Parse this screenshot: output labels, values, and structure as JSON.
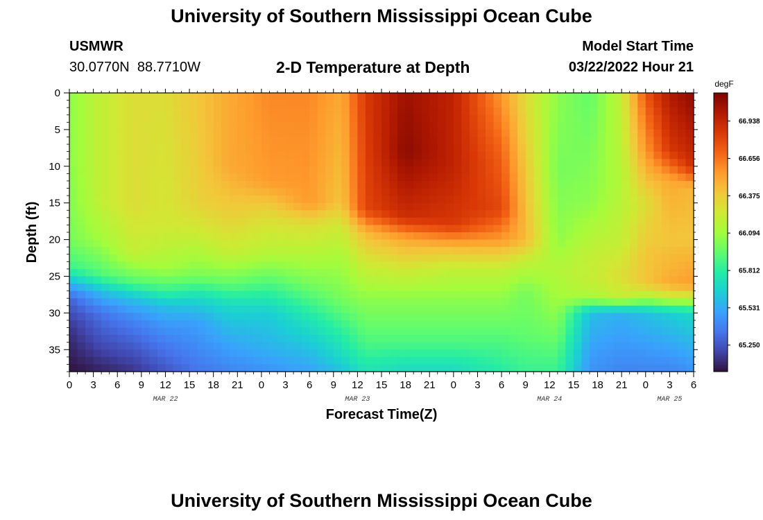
{
  "header": {
    "title": "University of Southern Mississippi Ocean Cube",
    "station_name": "USMWR",
    "station_coords": "30.0770N  88.7710W",
    "subtitle": "2-D Temperature at Depth",
    "start_label": "Model Start Time",
    "start_value": "03/22/2022 Hour 21"
  },
  "footer": {
    "title": "University of Southern Mississippi Ocean Cube"
  },
  "colors": {
    "colormap": [
      "#30123b",
      "#4145ab",
      "#4675ed",
      "#39a2fc",
      "#1bcfd4",
      "#24eca6",
      "#61fc6c",
      "#a4fc3b",
      "#d1e834",
      "#f3c63a",
      "#fe9b2d",
      "#f36315",
      "#d93806",
      "#b11901",
      "#7a0402"
    ]
  },
  "chart_data": {
    "type": "heatmap",
    "title": "2-D Temperature at Depth",
    "xlabel": "Forecast Time(Z)",
    "ylabel": "Depth (ft)",
    "colorbar_label": "degF",
    "colorbar_ticks": [
      "66.938",
      "66.656",
      "66.375",
      "66.094",
      "65.812",
      "65.531",
      "65.250"
    ],
    "colorbar_values": [
      66.938,
      66.656,
      66.375,
      66.094,
      65.812,
      65.531,
      65.25
    ],
    "value_range": [
      65.05,
      67.15
    ],
    "x_tick_labels": [
      "0",
      "3",
      "6",
      "9",
      "12",
      "15",
      "18",
      "21",
      "0",
      "3",
      "6",
      "9",
      "12",
      "15",
      "18",
      "21",
      "0",
      "3",
      "6",
      "9",
      "12",
      "15",
      "18",
      "21",
      "0",
      "3",
      "6"
    ],
    "x_range_hours": [
      0,
      78
    ],
    "date_labels": [
      {
        "text": "MAR 22",
        "hour": 12
      },
      {
        "text": "MAR 23",
        "hour": 36
      },
      {
        "text": "MAR 24",
        "hour": 60
      },
      {
        "text": "MAR 25",
        "hour": 75
      }
    ],
    "y_tick_labels": [
      "0",
      "5",
      "10",
      "15",
      "20",
      "25",
      "30",
      "35"
    ],
    "y_range": [
      0,
      38
    ],
    "x_step_hours": 1,
    "y_step_ft": 1,
    "grid": false,
    "legend": "colorbar-right",
    "keyframes": [
      {
        "h": 0,
        "p": [
          [
            0,
            66.05
          ],
          [
            10,
            66.05
          ],
          [
            20,
            66.0
          ],
          [
            24,
            65.85
          ],
          [
            26,
            65.55
          ],
          [
            28,
            65.3
          ],
          [
            32,
            65.15
          ],
          [
            38,
            65.05
          ]
        ]
      },
      {
        "h": 4,
        "p": [
          [
            0,
            66.2
          ],
          [
            15,
            66.2
          ],
          [
            20,
            66.1
          ],
          [
            25,
            65.9
          ],
          [
            27,
            65.6
          ],
          [
            30,
            65.35
          ],
          [
            35,
            65.2
          ],
          [
            38,
            65.1
          ]
        ]
      },
      {
        "h": 8,
        "p": [
          [
            0,
            66.3
          ],
          [
            15,
            66.3
          ],
          [
            22,
            66.2
          ],
          [
            26,
            65.9
          ],
          [
            28,
            65.6
          ],
          [
            31,
            65.4
          ],
          [
            35,
            65.25
          ],
          [
            38,
            65.15
          ]
        ]
      },
      {
        "h": 12,
        "p": [
          [
            0,
            66.3
          ],
          [
            18,
            66.25
          ],
          [
            24,
            66.1
          ],
          [
            27,
            65.85
          ],
          [
            29,
            65.6
          ],
          [
            32,
            65.45
          ],
          [
            38,
            65.25
          ]
        ]
      },
      {
        "h": 16,
        "p": [
          [
            0,
            66.4
          ],
          [
            15,
            66.35
          ],
          [
            20,
            66.2
          ],
          [
            25,
            66.0
          ],
          [
            28,
            65.7
          ],
          [
            31,
            65.5
          ],
          [
            38,
            65.35
          ]
        ]
      },
      {
        "h": 20,
        "p": [
          [
            0,
            66.5
          ],
          [
            10,
            66.5
          ],
          [
            17,
            66.35
          ],
          [
            22,
            66.2
          ],
          [
            26,
            65.95
          ],
          [
            29,
            65.7
          ],
          [
            33,
            65.55
          ],
          [
            38,
            65.4
          ]
        ]
      },
      {
        "h": 25,
        "p": [
          [
            0,
            66.6
          ],
          [
            12,
            66.55
          ],
          [
            17,
            66.3
          ],
          [
            22,
            66.15
          ],
          [
            26,
            65.9
          ],
          [
            30,
            65.65
          ],
          [
            35,
            65.55
          ],
          [
            38,
            65.45
          ]
        ]
      },
      {
        "h": 30,
        "p": [
          [
            0,
            66.6
          ],
          [
            15,
            66.55
          ],
          [
            18,
            66.3
          ],
          [
            22,
            66.15
          ],
          [
            26,
            66.0
          ],
          [
            31,
            65.75
          ],
          [
            35,
            65.6
          ],
          [
            38,
            65.5
          ]
        ]
      },
      {
        "h": 34,
        "p": [
          [
            0,
            66.5
          ],
          [
            15,
            66.4
          ],
          [
            18,
            66.25
          ],
          [
            23,
            66.1
          ],
          [
            28,
            66.0
          ],
          [
            33,
            65.8
          ],
          [
            36,
            65.7
          ],
          [
            38,
            65.6
          ]
        ]
      },
      {
        "h": 37,
        "p": [
          [
            0,
            66.85
          ],
          [
            16,
            66.8
          ],
          [
            19,
            66.45
          ],
          [
            23,
            66.25
          ],
          [
            28,
            66.05
          ],
          [
            34,
            65.9
          ],
          [
            38,
            65.75
          ]
        ]
      },
      {
        "h": 42,
        "p": [
          [
            0,
            67.05
          ],
          [
            8,
            67.1
          ],
          [
            17,
            66.9
          ],
          [
            20,
            66.5
          ],
          [
            24,
            66.25
          ],
          [
            28,
            66.05
          ],
          [
            34,
            65.9
          ],
          [
            38,
            65.7
          ]
        ]
      },
      {
        "h": 48,
        "p": [
          [
            0,
            66.95
          ],
          [
            10,
            66.95
          ],
          [
            18,
            66.85
          ],
          [
            21,
            66.45
          ],
          [
            24,
            66.2
          ],
          [
            28,
            66.05
          ],
          [
            34,
            65.9
          ],
          [
            38,
            65.7
          ]
        ]
      },
      {
        "h": 54,
        "p": [
          [
            0,
            66.55
          ],
          [
            8,
            66.7
          ],
          [
            16,
            66.8
          ],
          [
            20,
            66.55
          ],
          [
            24,
            66.2
          ],
          [
            28,
            66.05
          ],
          [
            34,
            65.9
          ],
          [
            38,
            65.8
          ]
        ]
      },
      {
        "h": 57,
        "p": [
          [
            0,
            66.3
          ],
          [
            12,
            66.4
          ],
          [
            20,
            66.45
          ],
          [
            23,
            66.2
          ],
          [
            27,
            66.0
          ],
          [
            33,
            65.95
          ],
          [
            38,
            65.85
          ]
        ]
      },
      {
        "h": 61,
        "p": [
          [
            0,
            66.05
          ],
          [
            10,
            66.0
          ],
          [
            20,
            66.05
          ],
          [
            24,
            66.15
          ],
          [
            28,
            66.1
          ],
          [
            32,
            66.0
          ],
          [
            36,
            65.9
          ],
          [
            38,
            65.85
          ]
        ]
      },
      {
        "h": 65,
        "p": [
          [
            0,
            65.95
          ],
          [
            15,
            66.05
          ],
          [
            22,
            66.2
          ],
          [
            26,
            66.2
          ],
          [
            28,
            66.1
          ],
          [
            30,
            65.6
          ],
          [
            35,
            65.5
          ],
          [
            38,
            65.45
          ]
        ]
      },
      {
        "h": 69,
        "p": [
          [
            0,
            66.2
          ],
          [
            12,
            66.15
          ],
          [
            20,
            66.2
          ],
          [
            25,
            66.3
          ],
          [
            28,
            66.2
          ],
          [
            30,
            65.55
          ],
          [
            38,
            65.4
          ]
        ]
      },
      {
        "h": 72,
        "p": [
          [
            0,
            66.75
          ],
          [
            8,
            66.55
          ],
          [
            15,
            66.3
          ],
          [
            22,
            66.4
          ],
          [
            26,
            66.4
          ],
          [
            28,
            66.1
          ],
          [
            30,
            65.6
          ],
          [
            38,
            65.4
          ]
        ]
      },
      {
        "h": 75,
        "p": [
          [
            0,
            67.0
          ],
          [
            8,
            66.85
          ],
          [
            12,
            66.5
          ],
          [
            20,
            66.4
          ],
          [
            26,
            66.5
          ],
          [
            28,
            66.2
          ],
          [
            30,
            65.65
          ],
          [
            38,
            65.4
          ]
        ]
      },
      {
        "h": 78,
        "p": [
          [
            0,
            67.1
          ],
          [
            10,
            66.9
          ],
          [
            13,
            66.45
          ],
          [
            20,
            66.4
          ],
          [
            26,
            66.55
          ],
          [
            28,
            66.2
          ],
          [
            30,
            65.7
          ],
          [
            38,
            65.45
          ]
        ]
      }
    ]
  }
}
